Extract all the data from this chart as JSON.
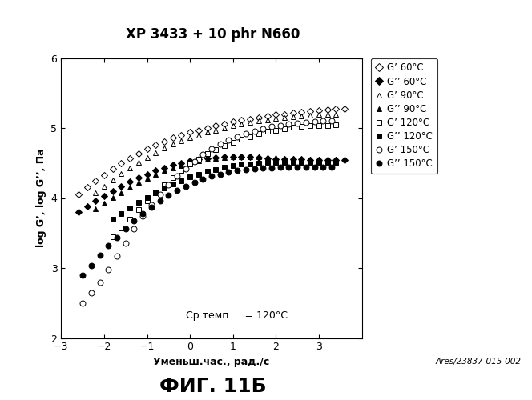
{
  "title": "XP 3433 + 10 phr N660",
  "xlabel": "Уменьш.час., рад./с",
  "ylabel": "log G’, log G’’, Па",
  "xlim": [
    -3,
    4
  ],
  "ylim": [
    2,
    6
  ],
  "xticks": [
    -3,
    -2,
    -1,
    0,
    1,
    2,
    3
  ],
  "yticks": [
    2,
    3,
    4,
    5,
    6
  ],
  "annotation": "Ср.темп.    = 120°C",
  "watermark": "Ares/23837-015-002",
  "figure_label": "ФИГ. 11Б",
  "legend_entries": [
    "G’ 60°C",
    "G’’ 60°C",
    "G’ 90°C",
    "G’’ 90°C",
    "G’ 120°C",
    "G’’ 120°C",
    "G’ 150°C",
    "G’’ 150°C"
  ],
  "G_prime_60": {
    "x": [
      -2.6,
      -2.4,
      -2.2,
      -2.0,
      -1.8,
      -1.6,
      -1.4,
      -1.2,
      -1.0,
      -0.8,
      -0.6,
      -0.4,
      -0.2,
      0.0,
      0.2,
      0.4,
      0.6,
      0.8,
      1.0,
      1.2,
      1.4,
      1.6,
      1.8,
      2.0,
      2.2,
      2.4,
      2.6,
      2.8,
      3.0,
      3.2,
      3.4,
      3.6
    ],
    "y": [
      4.05,
      4.15,
      4.25,
      4.33,
      4.42,
      4.5,
      4.57,
      4.64,
      4.7,
      4.76,
      4.81,
      4.86,
      4.9,
      4.94,
      4.97,
      5.0,
      5.03,
      5.06,
      5.09,
      5.11,
      5.13,
      5.15,
      5.17,
      5.19,
      5.2,
      5.22,
      5.23,
      5.24,
      5.25,
      5.26,
      5.27,
      5.28
    ],
    "marker": "D",
    "facecolor": "white",
    "edgecolor": "black",
    "size": 4
  },
  "G_double_prime_60": {
    "x": [
      -2.6,
      -2.4,
      -2.2,
      -2.0,
      -1.8,
      -1.6,
      -1.4,
      -1.2,
      -1.0,
      -0.8,
      -0.6,
      -0.4,
      -0.2,
      0.0,
      0.2,
      0.4,
      0.6,
      0.8,
      1.0,
      1.2,
      1.4,
      1.6,
      1.8,
      2.0,
      2.2,
      2.4,
      2.6,
      2.8,
      3.0,
      3.2,
      3.4,
      3.6
    ],
    "y": [
      3.8,
      3.88,
      3.96,
      4.03,
      4.1,
      4.17,
      4.23,
      4.29,
      4.34,
      4.39,
      4.43,
      4.47,
      4.5,
      4.53,
      4.55,
      4.57,
      4.58,
      4.59,
      4.59,
      4.59,
      4.59,
      4.58,
      4.57,
      4.56,
      4.56,
      4.55,
      4.55,
      4.54,
      4.54,
      4.54,
      4.54,
      4.54
    ],
    "marker": "D",
    "facecolor": "black",
    "edgecolor": "black",
    "size": 4
  },
  "G_prime_90": {
    "x": [
      -2.2,
      -2.0,
      -1.8,
      -1.6,
      -1.4,
      -1.2,
      -1.0,
      -0.8,
      -0.6,
      -0.4,
      -0.2,
      0.0,
      0.2,
      0.4,
      0.6,
      0.8,
      1.0,
      1.2,
      1.4,
      1.6,
      1.8,
      2.0,
      2.2,
      2.4,
      2.6,
      2.8,
      3.0,
      3.2,
      3.4
    ],
    "y": [
      4.08,
      4.17,
      4.26,
      4.35,
      4.43,
      4.51,
      4.58,
      4.65,
      4.71,
      4.77,
      4.82,
      4.86,
      4.9,
      4.94,
      4.97,
      5.0,
      5.03,
      5.06,
      5.08,
      5.1,
      5.12,
      5.14,
      5.15,
      5.16,
      5.17,
      5.18,
      5.19,
      5.2,
      5.2
    ],
    "marker": "^",
    "facecolor": "white",
    "edgecolor": "black",
    "size": 5
  },
  "G_double_prime_90": {
    "x": [
      -2.2,
      -2.0,
      -1.8,
      -1.6,
      -1.4,
      -1.2,
      -1.0,
      -0.8,
      -0.6,
      -0.4,
      -0.2,
      0.0,
      0.2,
      0.4,
      0.6,
      0.8,
      1.0,
      1.2,
      1.4,
      1.6,
      1.8,
      2.0,
      2.2,
      2.4,
      2.6,
      2.8,
      3.0,
      3.2,
      3.4
    ],
    "y": [
      3.85,
      3.93,
      4.01,
      4.08,
      4.15,
      4.22,
      4.28,
      4.34,
      4.39,
      4.43,
      4.47,
      4.51,
      4.53,
      4.55,
      4.57,
      4.58,
      4.59,
      4.59,
      4.59,
      4.59,
      4.58,
      4.58,
      4.57,
      4.57,
      4.56,
      4.56,
      4.56,
      4.56,
      4.56
    ],
    "marker": "^",
    "facecolor": "black",
    "edgecolor": "black",
    "size": 5
  },
  "G_prime_120": {
    "x": [
      -1.8,
      -1.6,
      -1.4,
      -1.2,
      -1.0,
      -0.8,
      -0.6,
      -0.4,
      -0.2,
      0.0,
      0.2,
      0.4,
      0.6,
      0.8,
      1.0,
      1.2,
      1.4,
      1.6,
      1.8,
      2.0,
      2.2,
      2.4,
      2.6,
      2.8,
      3.0,
      3.2,
      3.4
    ],
    "y": [
      3.45,
      3.57,
      3.7,
      3.83,
      3.96,
      4.08,
      4.19,
      4.29,
      4.39,
      4.48,
      4.56,
      4.63,
      4.69,
      4.75,
      4.8,
      4.84,
      4.88,
      4.92,
      4.95,
      4.97,
      4.99,
      5.01,
      5.02,
      5.03,
      5.04,
      5.04,
      5.05
    ],
    "marker": "s",
    "facecolor": "white",
    "edgecolor": "black",
    "size": 4
  },
  "G_double_prime_120": {
    "x": [
      -1.8,
      -1.6,
      -1.4,
      -1.2,
      -1.0,
      -0.8,
      -0.6,
      -0.4,
      -0.2,
      0.0,
      0.2,
      0.4,
      0.6,
      0.8,
      1.0,
      1.2,
      1.4,
      1.6,
      1.8,
      2.0,
      2.2,
      2.4,
      2.6,
      2.8,
      3.0,
      3.2,
      3.4
    ],
    "y": [
      3.7,
      3.78,
      3.86,
      3.94,
      4.01,
      4.08,
      4.14,
      4.2,
      4.25,
      4.3,
      4.34,
      4.38,
      4.41,
      4.44,
      4.46,
      4.48,
      4.49,
      4.5,
      4.51,
      4.51,
      4.51,
      4.51,
      4.51,
      4.51,
      4.51,
      4.51,
      4.51
    ],
    "marker": "s",
    "facecolor": "black",
    "edgecolor": "black",
    "size": 4
  },
  "G_prime_150": {
    "x": [
      -2.5,
      -2.3,
      -2.1,
      -1.9,
      -1.7,
      -1.5,
      -1.3,
      -1.1,
      -0.9,
      -0.7,
      -0.5,
      -0.3,
      -0.1,
      0.1,
      0.3,
      0.5,
      0.7,
      0.9,
      1.1,
      1.3,
      1.5,
      1.7,
      1.9,
      2.1,
      2.3,
      2.5,
      2.7,
      2.9,
      3.1,
      3.3
    ],
    "y": [
      2.5,
      2.65,
      2.8,
      2.98,
      3.17,
      3.36,
      3.56,
      3.74,
      3.9,
      4.05,
      4.19,
      4.31,
      4.42,
      4.52,
      4.62,
      4.7,
      4.77,
      4.83,
      4.88,
      4.92,
      4.96,
      4.99,
      5.02,
      5.04,
      5.06,
      5.07,
      5.08,
      5.09,
      5.1,
      5.1
    ],
    "marker": "o",
    "facecolor": "white",
    "edgecolor": "black",
    "size": 5
  },
  "G_double_prime_150": {
    "x": [
      -2.5,
      -2.3,
      -2.1,
      -1.9,
      -1.7,
      -1.5,
      -1.3,
      -1.1,
      -0.9,
      -0.7,
      -0.5,
      -0.3,
      -0.1,
      0.1,
      0.3,
      0.5,
      0.7,
      0.9,
      1.1,
      1.3,
      1.5,
      1.7,
      1.9,
      2.1,
      2.3,
      2.5,
      2.7,
      2.9,
      3.1,
      3.3
    ],
    "y": [
      2.9,
      3.04,
      3.18,
      3.32,
      3.44,
      3.56,
      3.67,
      3.78,
      3.87,
      3.96,
      4.04,
      4.11,
      4.17,
      4.22,
      4.27,
      4.31,
      4.34,
      4.37,
      4.39,
      4.41,
      4.42,
      4.43,
      4.43,
      4.44,
      4.44,
      4.44,
      4.44,
      4.44,
      4.44,
      4.44
    ],
    "marker": "o",
    "facecolor": "black",
    "edgecolor": "black",
    "size": 5
  }
}
